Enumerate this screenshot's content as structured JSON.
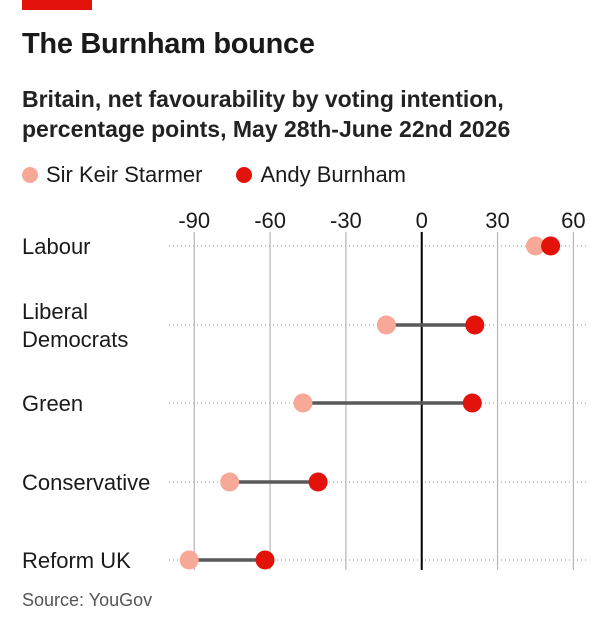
{
  "title": "The Burnham bounce",
  "subtitle": "Britain, net favourability by voting intention, percentage points, May 28th-June 22nd 2026",
  "source": "Source: YouGov",
  "colors": {
    "accent_bar": "#e3120b",
    "starmer": "#f7a896",
    "burnham": "#e3120b",
    "connector": "#595959",
    "grid": "#b5b5b5",
    "zero_line": "#000000"
  },
  "chart_data": {
    "type": "dot-range",
    "xlim": [
      -100,
      65
    ],
    "xticks": [
      -90,
      -60,
      -30,
      0,
      30,
      60
    ],
    "xtick_labels": [
      "-90",
      "-60",
      "-30",
      "0",
      "30",
      "60"
    ],
    "grid": "vertical",
    "legend_placement": "top-left",
    "categories": [
      {
        "label": "Labour",
        "lines": [
          "Labour"
        ]
      },
      {
        "label": "Liberal Democrats",
        "lines": [
          "Liberal",
          "Democrats"
        ]
      },
      {
        "label": "Green",
        "lines": [
          "Green"
        ]
      },
      {
        "label": "Conservative",
        "lines": [
          "Conservative"
        ]
      },
      {
        "label": "Reform UK",
        "lines": [
          "Reform UK"
        ]
      }
    ],
    "series": [
      {
        "name": "Sir Keir Starmer",
        "values": [
          45,
          -14,
          -47,
          -76,
          -92
        ]
      },
      {
        "name": "Andy Burnham",
        "values": [
          51,
          21,
          20,
          -41,
          -62
        ]
      }
    ]
  }
}
